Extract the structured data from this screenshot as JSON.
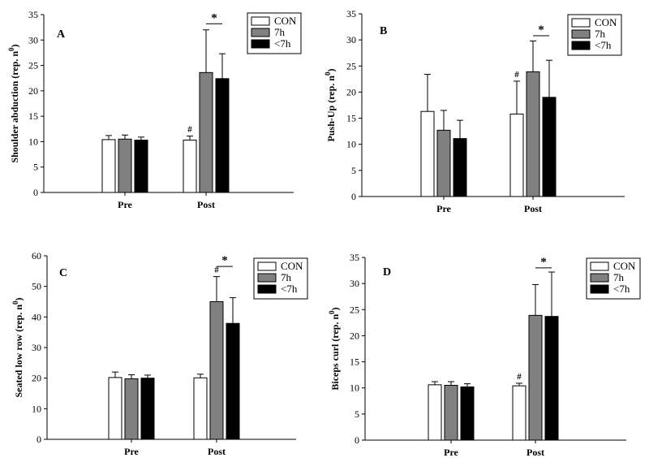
{
  "chart_data": [
    {
      "type": "bar",
      "panel_label": "A",
      "ylabel": "Shoulder abduction (rep. n",
      "ylabel_sup": "0",
      "ylabel_close": ")",
      "ylim": [
        0,
        35
      ],
      "yticks": [
        0,
        5,
        10,
        15,
        20,
        25,
        30,
        35
      ],
      "categories": [
        "Pre",
        "Post"
      ],
      "legend_position": "top-right",
      "series": [
        {
          "name": "CON",
          "color": "#ffffff",
          "values": [
            10.4,
            10.3
          ],
          "errors": [
            0.8,
            0.8
          ]
        },
        {
          "name": "7h",
          "color": "#808080",
          "values": [
            10.5,
            23.6
          ],
          "errors": [
            0.8,
            8.4
          ]
        },
        {
          "name": "<7h",
          "color": "#000000",
          "values": [
            10.3,
            22.4
          ],
          "errors": [
            0.6,
            4.9
          ]
        }
      ],
      "annotations": [
        {
          "text": "#",
          "category": 1,
          "series": 0
        },
        {
          "text": "*",
          "category": 1,
          "between": [
            1,
            2
          ],
          "y": 33.2
        }
      ]
    },
    {
      "type": "bar",
      "panel_label": "B",
      "ylabel": "Push-Up (rep. n",
      "ylabel_sup": "0",
      "ylabel_close": ")",
      "ylim": [
        0,
        35
      ],
      "yticks": [
        0,
        5,
        10,
        15,
        20,
        25,
        30,
        35
      ],
      "categories": [
        "Pre",
        "Post"
      ],
      "legend_position": "top-right",
      "series": [
        {
          "name": "CON",
          "color": "#ffffff",
          "values": [
            16.3,
            15.8
          ],
          "errors": [
            7.1,
            6.3
          ]
        },
        {
          "name": "7h",
          "color": "#808080",
          "values": [
            12.7,
            23.9
          ],
          "errors": [
            3.8,
            5.9
          ]
        },
        {
          "name": "<7h",
          "color": "#000000",
          "values": [
            11.1,
            19.0
          ],
          "errors": [
            3.5,
            7.1
          ]
        }
      ],
      "annotations": [
        {
          "text": "#",
          "category": 1,
          "series": 0
        },
        {
          "text": "*",
          "category": 1,
          "between": [
            1,
            2
          ],
          "y": 30.8
        }
      ]
    },
    {
      "type": "bar",
      "panel_label": "C",
      "ylabel": "Seated low row (rep. n",
      "ylabel_sup": "0",
      "ylabel_close": ")",
      "ylim": [
        0,
        60
      ],
      "yticks": [
        0,
        10,
        20,
        30,
        40,
        50,
        60
      ],
      "categories": [
        "Pre",
        "Post"
      ],
      "legend_position": "top-right",
      "series": [
        {
          "name": "CON",
          "color": "#ffffff",
          "values": [
            20.2,
            20.1
          ],
          "errors": [
            1.8,
            1.2
          ]
        },
        {
          "name": "7h",
          "color": "#808080",
          "values": [
            19.8,
            45.0
          ],
          "errors": [
            1.3,
            8.2
          ]
        },
        {
          "name": "<7h",
          "color": "#000000",
          "values": [
            20.0,
            37.9
          ],
          "errors": [
            1.0,
            8.4
          ]
        }
      ],
      "annotations": [
        {
          "text": "#",
          "category": 1,
          "series": 1
        },
        {
          "text": "*",
          "category": 1,
          "between": [
            1,
            2
          ],
          "y": 56.5
        }
      ]
    },
    {
      "type": "bar",
      "panel_label": "D",
      "ylabel": "Biceps curl (rep. n",
      "ylabel_sup": "0",
      "ylabel_close": ")",
      "ylim": [
        0,
        35
      ],
      "yticks": [
        0,
        5,
        10,
        15,
        20,
        25,
        30,
        35
      ],
      "categories": [
        "Pre",
        "Post"
      ],
      "legend_position": "top-right",
      "series": [
        {
          "name": "CON",
          "color": "#ffffff",
          "values": [
            10.6,
            10.4
          ],
          "errors": [
            0.6,
            0.5
          ]
        },
        {
          "name": "7h",
          "color": "#808080",
          "values": [
            10.5,
            23.9
          ],
          "errors": [
            0.7,
            5.9
          ]
        },
        {
          "name": "<7h",
          "color": "#000000",
          "values": [
            10.2,
            23.7
          ],
          "errors": [
            0.6,
            8.5
          ]
        }
      ],
      "annotations": [
        {
          "text": "#",
          "category": 1,
          "series": 0
        },
        {
          "text": "*",
          "category": 1,
          "between": [
            1,
            2
          ],
          "y": 33.0
        }
      ]
    }
  ]
}
